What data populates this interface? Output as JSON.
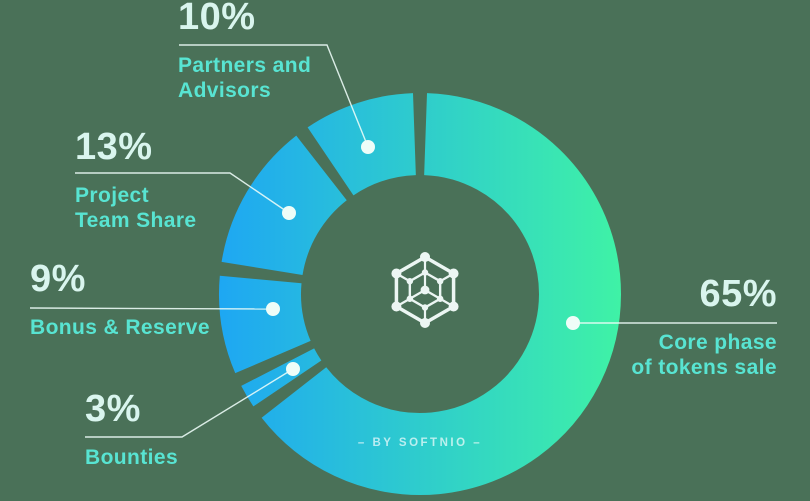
{
  "colors": {
    "background": "#4a7158",
    "gradient_start": "#1ea7f3",
    "gradient_end": "#3ff2a6",
    "percent_text": "#d9f5ee",
    "category_text": "#58e4d2",
    "line_and_dot": "#eefdf8",
    "logo": "#f2fbf8"
  },
  "chart_data": {
    "type": "pie",
    "donut": true,
    "unit": "%",
    "direction": "clockwise",
    "start": "12-oclock",
    "segments": [
      {
        "id": "core",
        "label": "Core phase of tokens sale",
        "value": 65
      },
      {
        "id": "bounties",
        "label": "Bounties",
        "value": 3
      },
      {
        "id": "bonus",
        "label": "Bonus & Reserve",
        "value": 9
      },
      {
        "id": "team",
        "label": "Project Team Share",
        "value": 13
      },
      {
        "id": "partners",
        "label": "Partners and Advisors",
        "value": 10
      }
    ],
    "center_icon": "network-cube-icon",
    "center_watermark": "– BY SOFTNIO –",
    "legend_position": "callouts-around-donut",
    "grid": false
  },
  "callouts": {
    "partners": {
      "pct": "10%",
      "name": "Partners and\nAdvisors"
    },
    "team": {
      "pct": "13%",
      "name": "Project\nTeam Share"
    },
    "bonus": {
      "pct": "9%",
      "name": "Bonus & Reserve"
    },
    "bounties": {
      "pct": "3%",
      "name": "Bounties"
    },
    "core": {
      "pct": "65%",
      "name": "Core phase\nof tokens sale"
    }
  },
  "watermark": "– BY SOFTNIO –"
}
